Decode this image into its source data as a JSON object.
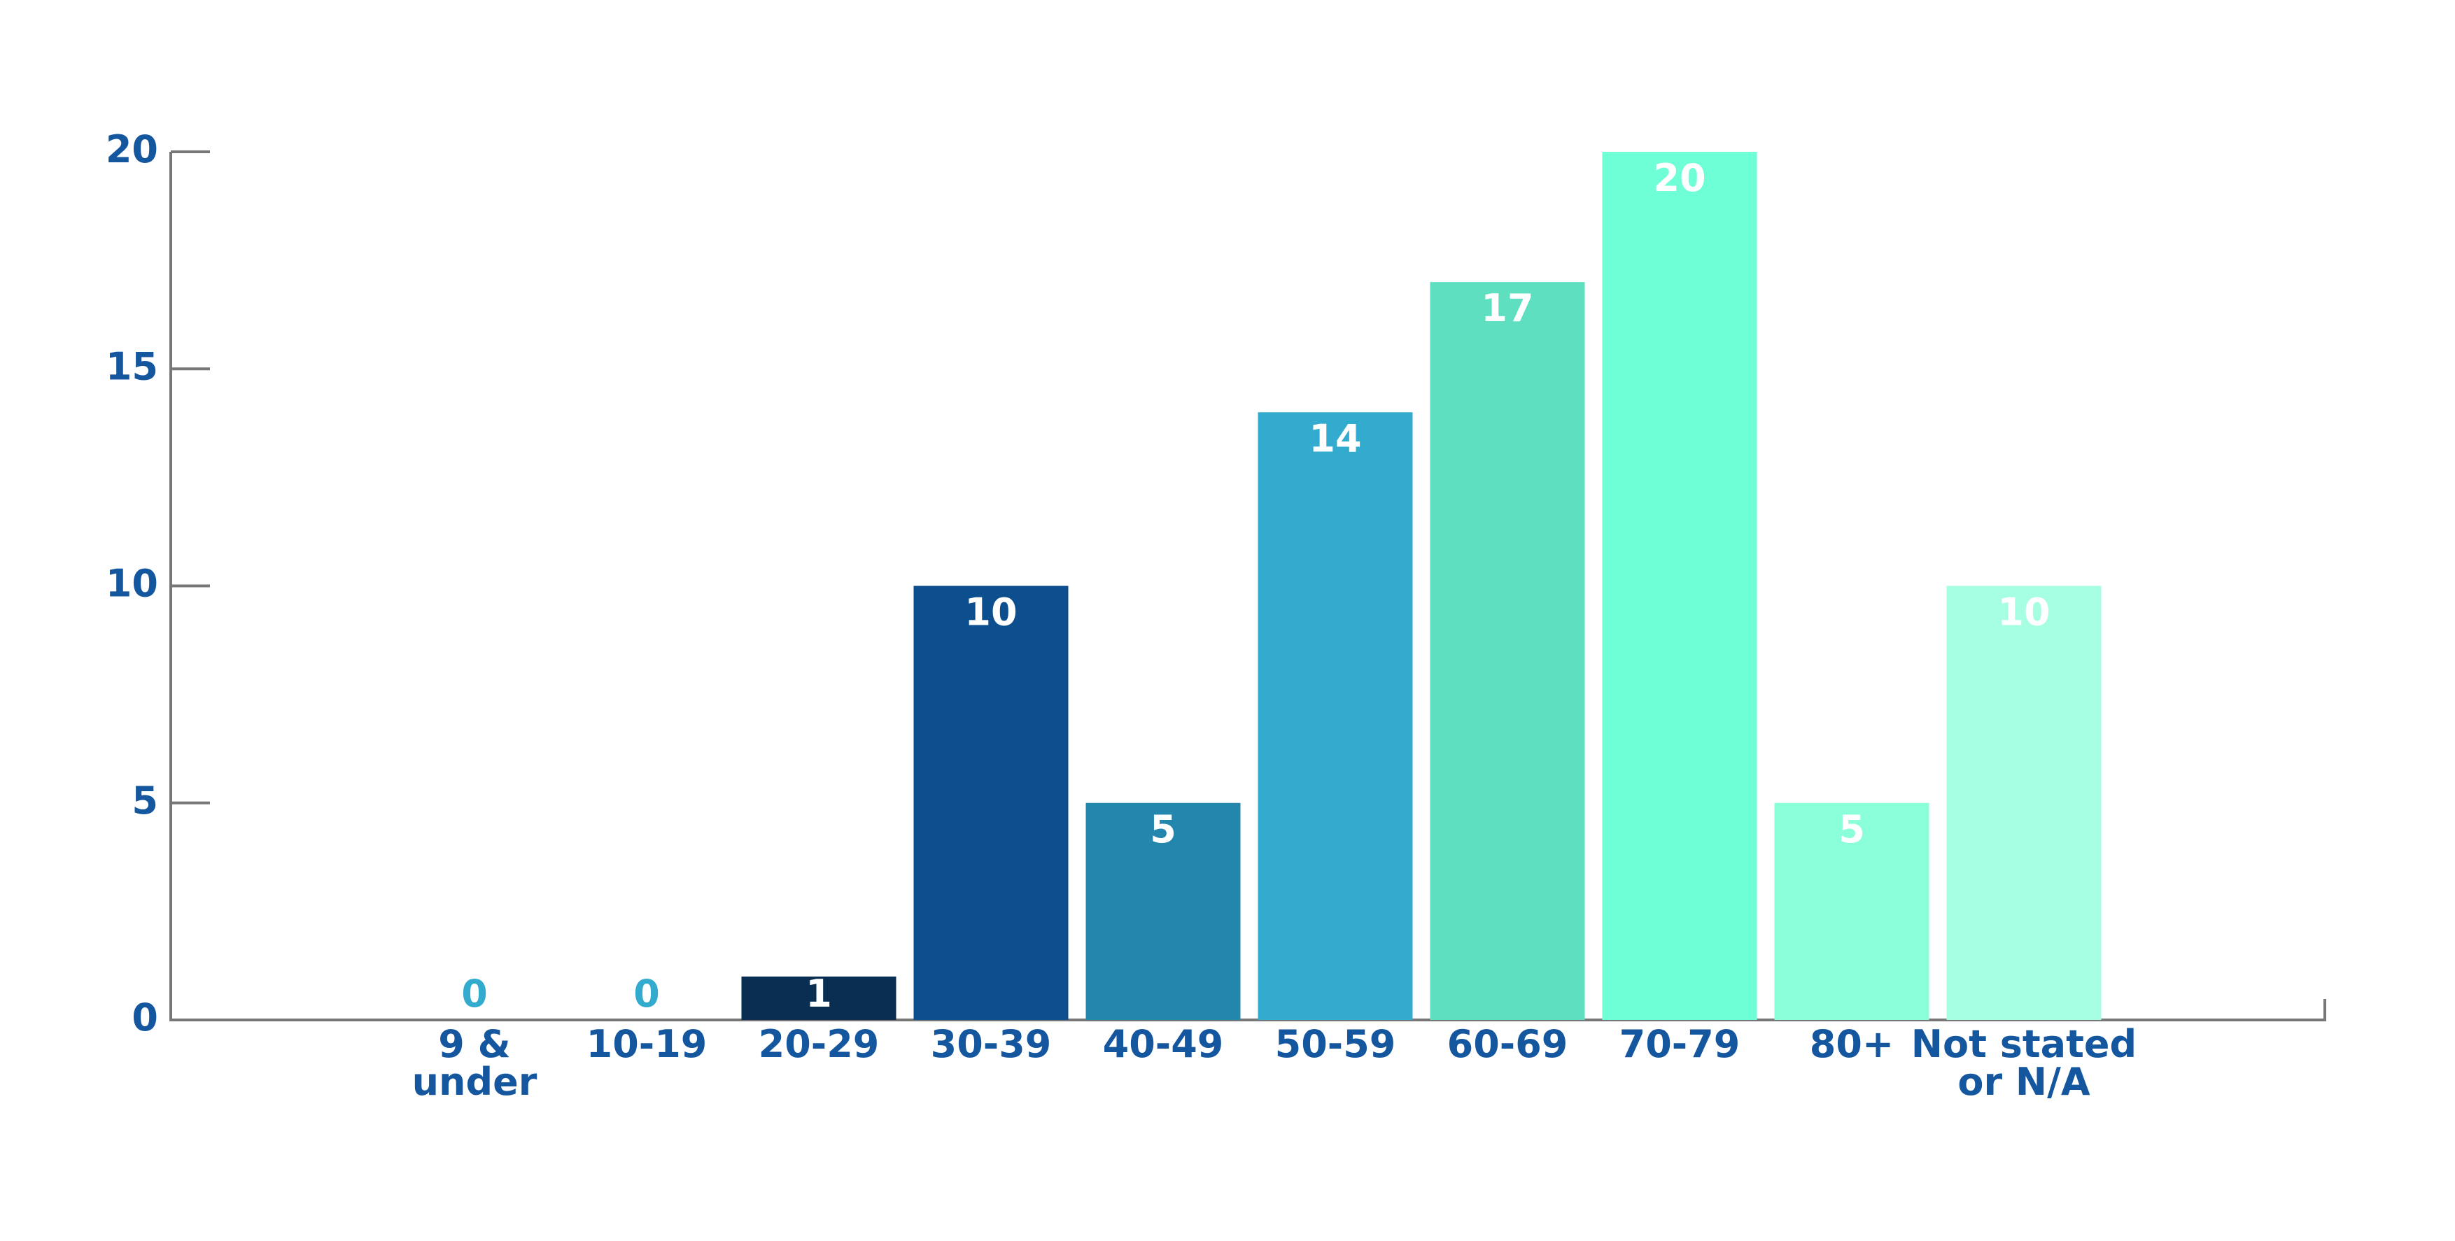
{
  "chart_data": {
    "type": "bar",
    "categories": [
      "9 &\nunder",
      "10-19",
      "20-29",
      "30-39",
      "40-49",
      "50-59",
      "60-69",
      "70-79",
      "80+",
      "Not stated\nor N/A"
    ],
    "values": [
      0,
      0,
      1,
      10,
      5,
      14,
      17,
      20,
      5,
      10
    ],
    "colors": [
      "#33abce",
      "#33abce",
      "#0a2d52",
      "#0d4e8f",
      "#2386ad",
      "#33abce",
      "#5ddfc0",
      "#6effd6",
      "#8affd9",
      "#a6ffe3"
    ],
    "ylim": [
      0,
      20
    ],
    "yticks": [
      0,
      5,
      10,
      15,
      20
    ]
  }
}
